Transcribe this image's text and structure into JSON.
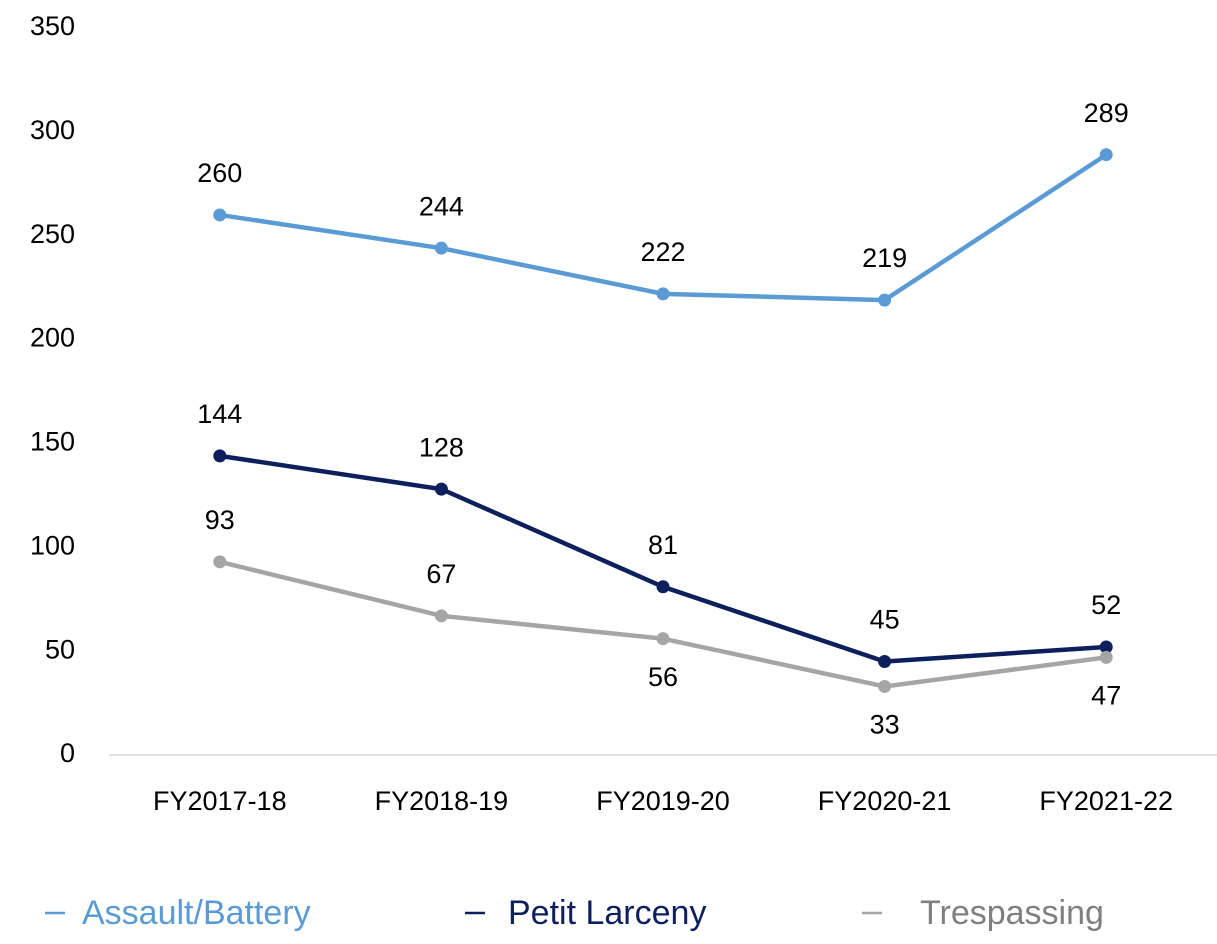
{
  "chart_data": {
    "type": "line",
    "categories": [
      "FY2017-18",
      "FY2018-19",
      "FY2019-20",
      "FY2020-21",
      "FY2021-22"
    ],
    "series": [
      {
        "name": "Assault/Battery",
        "color": "#5b9bd5",
        "values": [
          260,
          244,
          222,
          219,
          289
        ]
      },
      {
        "name": "Petit Larceny",
        "color": "#0d1f5c",
        "values": [
          144,
          128,
          81,
          45,
          52
        ]
      },
      {
        "name": "Trespassing",
        "color": "#a5a5a5",
        "values": [
          93,
          67,
          56,
          33,
          47
        ]
      }
    ],
    "ylim": [
      0,
      350
    ],
    "yticks": [
      0,
      50,
      100,
      150,
      200,
      250,
      300,
      350
    ],
    "grid": false,
    "legend": "bottom"
  }
}
